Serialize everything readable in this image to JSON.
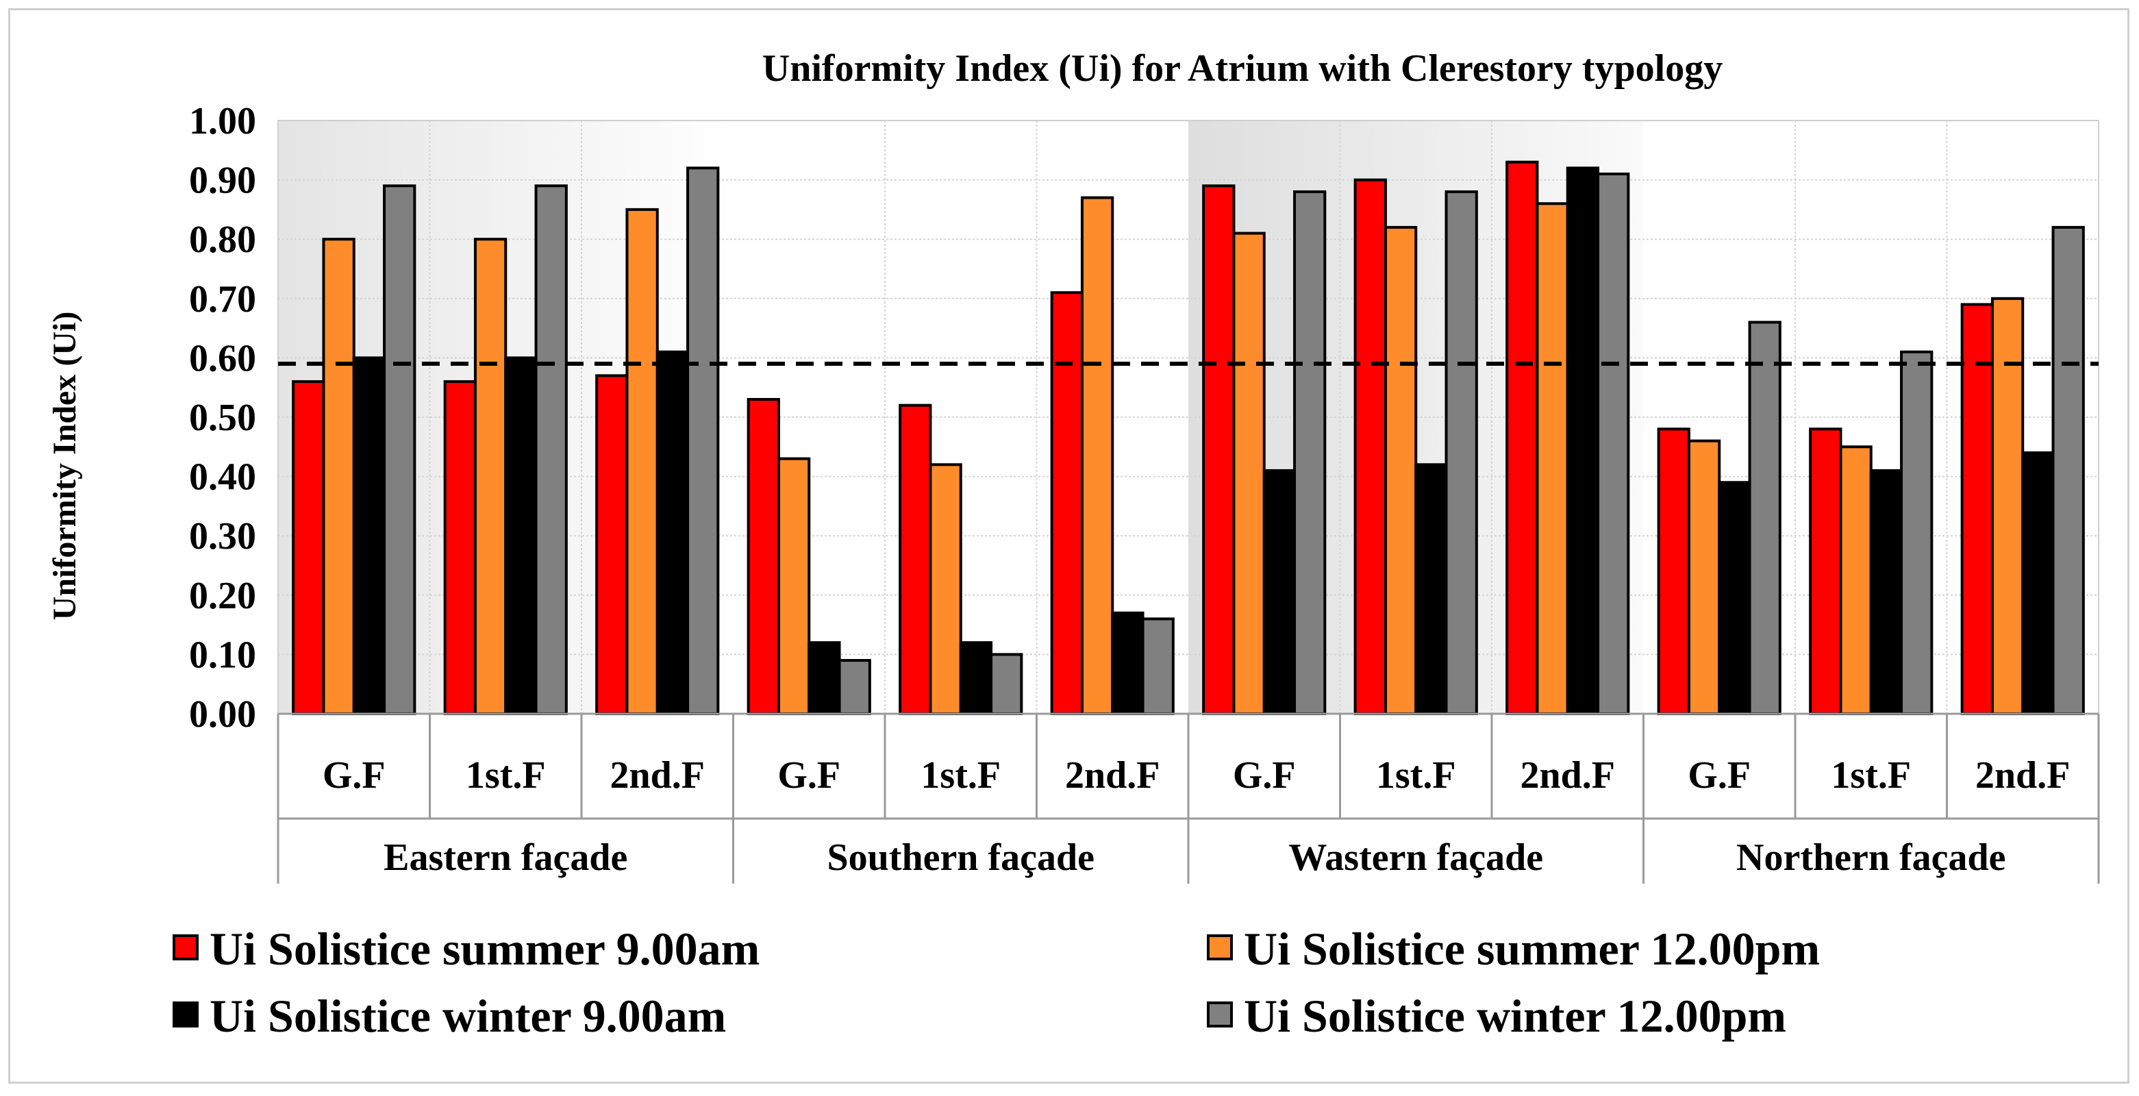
{
  "chart_data": {
    "type": "bar",
    "title": "Uniformity Index (Ui) for Atrium with Clerestory typology",
    "ylabel": "Uniformity Index (Ui)",
    "xlabel": "",
    "ylim": [
      0,
      1
    ],
    "yticks": [
      "0.00",
      "0.10",
      "0.20",
      "0.30",
      "0.40",
      "0.50",
      "0.60",
      "0.70",
      "0.80",
      "0.90",
      "1.00"
    ],
    "reference_line": 0.59,
    "groups": [
      {
        "label": "Eastern façade",
        "categories": [
          "G.F",
          "1st.F",
          "2nd.F"
        ]
      },
      {
        "label": "Southern façade",
        "categories": [
          "G.F",
          "1st.F",
          "2nd.F"
        ]
      },
      {
        "label": "Wastern façade",
        "categories": [
          "G.F",
          "1st.F",
          "2nd.F"
        ]
      },
      {
        "label": "Northern façade",
        "categories": [
          "G.F",
          "1st.F",
          "2nd.F"
        ]
      }
    ],
    "series": [
      {
        "name": "Ui Solistice summer 9.00am",
        "color": "#ff0000",
        "values": [
          0.56,
          0.56,
          0.57,
          0.53,
          0.52,
          0.71,
          0.89,
          0.9,
          0.93,
          0.48,
          0.48,
          0.69
        ]
      },
      {
        "name": "Ui Solistice summer 12.00pm",
        "color": "#ff8c2a",
        "values": [
          0.8,
          0.8,
          0.85,
          0.43,
          0.42,
          0.87,
          0.81,
          0.82,
          0.86,
          0.46,
          0.45,
          0.7
        ]
      },
      {
        "name": "Ui Solistice winter 9.00am",
        "color": "#000000",
        "values": [
          0.6,
          0.6,
          0.61,
          0.12,
          0.12,
          0.17,
          0.41,
          0.42,
          0.92,
          0.39,
          0.41,
          0.44
        ]
      },
      {
        "name": "Ui Solistice winter 12.00pm",
        "color": "#808080",
        "values": [
          0.89,
          0.89,
          0.92,
          0.09,
          0.1,
          0.16,
          0.88,
          0.88,
          0.91,
          0.66,
          0.61,
          0.82
        ]
      }
    ],
    "grid": true,
    "legend_position": "bottom"
  }
}
